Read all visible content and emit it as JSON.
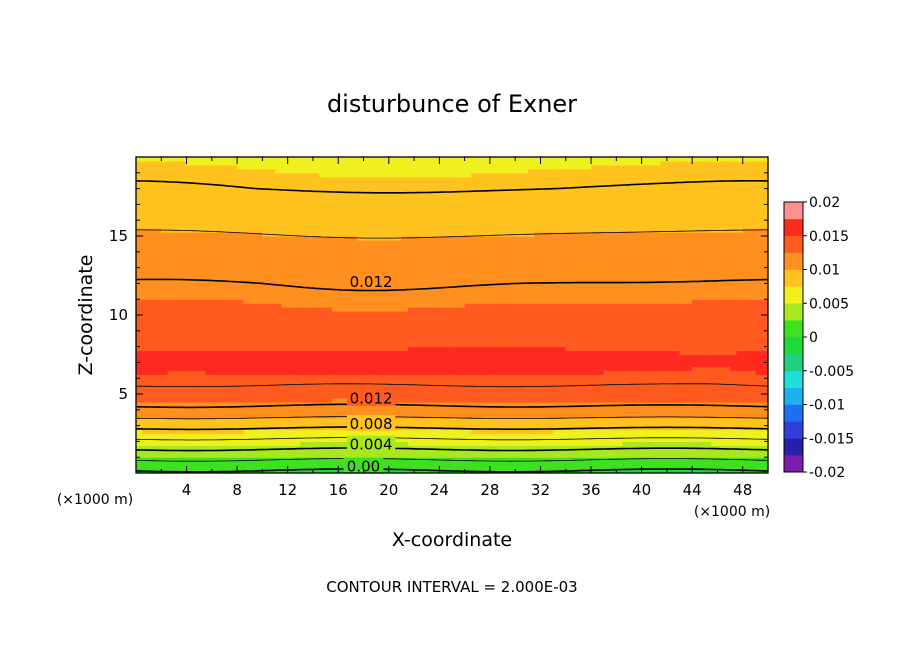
{
  "chart_data": {
    "type": "heatmap",
    "title": "disturbunce of Exner",
    "xlabel": "X-coordinate",
    "ylabel": "Z-coordinate",
    "x_unit": "(×1000 m)",
    "y_unit": "(×1000 m)",
    "xlim": [
      0,
      50
    ],
    "ylim": [
      0,
      20
    ],
    "x_ticks": [
      4,
      8,
      12,
      16,
      20,
      24,
      28,
      32,
      36,
      40,
      44,
      48
    ],
    "x_tick_labels": [
      "4",
      "8",
      "12",
      "16",
      "20",
      "24",
      "28",
      "32",
      "36",
      "40",
      "44",
      "48"
    ],
    "y_ticks": [
      5,
      10,
      15
    ],
    "y_tick_labels": [
      "5",
      "10",
      "15"
    ],
    "contour_interval_text": "CONTOUR INTERVAL = 2.000E-03",
    "contour_interval": 0.002,
    "contour_labels": [
      {
        "text": "0.012",
        "x": 18.6,
        "z": 12.1
      },
      {
        "text": "0.012",
        "x": 18.6,
        "z": 4.7
      },
      {
        "text": "0.008",
        "x": 18.6,
        "z": 3.1
      },
      {
        "text": "0.004",
        "x": 18.6,
        "z": 1.8
      },
      {
        "text": "0.00",
        "x": 18.0,
        "z": 0.4
      }
    ],
    "colorbar": {
      "min": -0.02,
      "max": 0.02,
      "step": 0.0025,
      "tick_labels": [
        "0.02",
        "0.015",
        "0.01",
        "0.005",
        "0",
        "-0.005",
        "-0.01",
        "-0.015",
        "-0.02"
      ],
      "colors": [
        "#7a1fb0",
        "#2a1fa8",
        "#2f3fd8",
        "#1f6ff0",
        "#1fb0f0",
        "#1fe0d8",
        "#1fd080",
        "#1fd83a",
        "#3fe01f",
        "#a8e81f",
        "#f0f01f",
        "#ffc21f",
        "#ff8f1f",
        "#ff5a1f",
        "#ff2a1f",
        "#ff9090"
      ]
    },
    "profile_z": [
      0,
      0.5,
      1,
      1.5,
      2,
      2.5,
      3,
      3.5,
      4,
      4.5,
      5,
      5.5,
      6,
      6.5,
      7,
      7.5,
      8,
      8.5,
      9,
      9.5,
      10,
      11,
      12,
      13,
      14,
      15,
      16,
      17,
      18,
      19,
      20
    ],
    "profile_values": [
      -0.0005,
      0.001,
      0.0025,
      0.004,
      0.0055,
      0.007,
      0.0085,
      0.01,
      0.0115,
      0.0125,
      0.0132,
      0.0139,
      0.0146,
      0.0151,
      0.0154,
      0.0152,
      0.0148,
      0.0143,
      0.0138,
      0.0133,
      0.0128,
      0.0124,
      0.012,
      0.0114,
      0.0108,
      0.0101,
      0.0094,
      0.0088,
      0.008,
      0.0076,
      0.0072
    ]
  }
}
